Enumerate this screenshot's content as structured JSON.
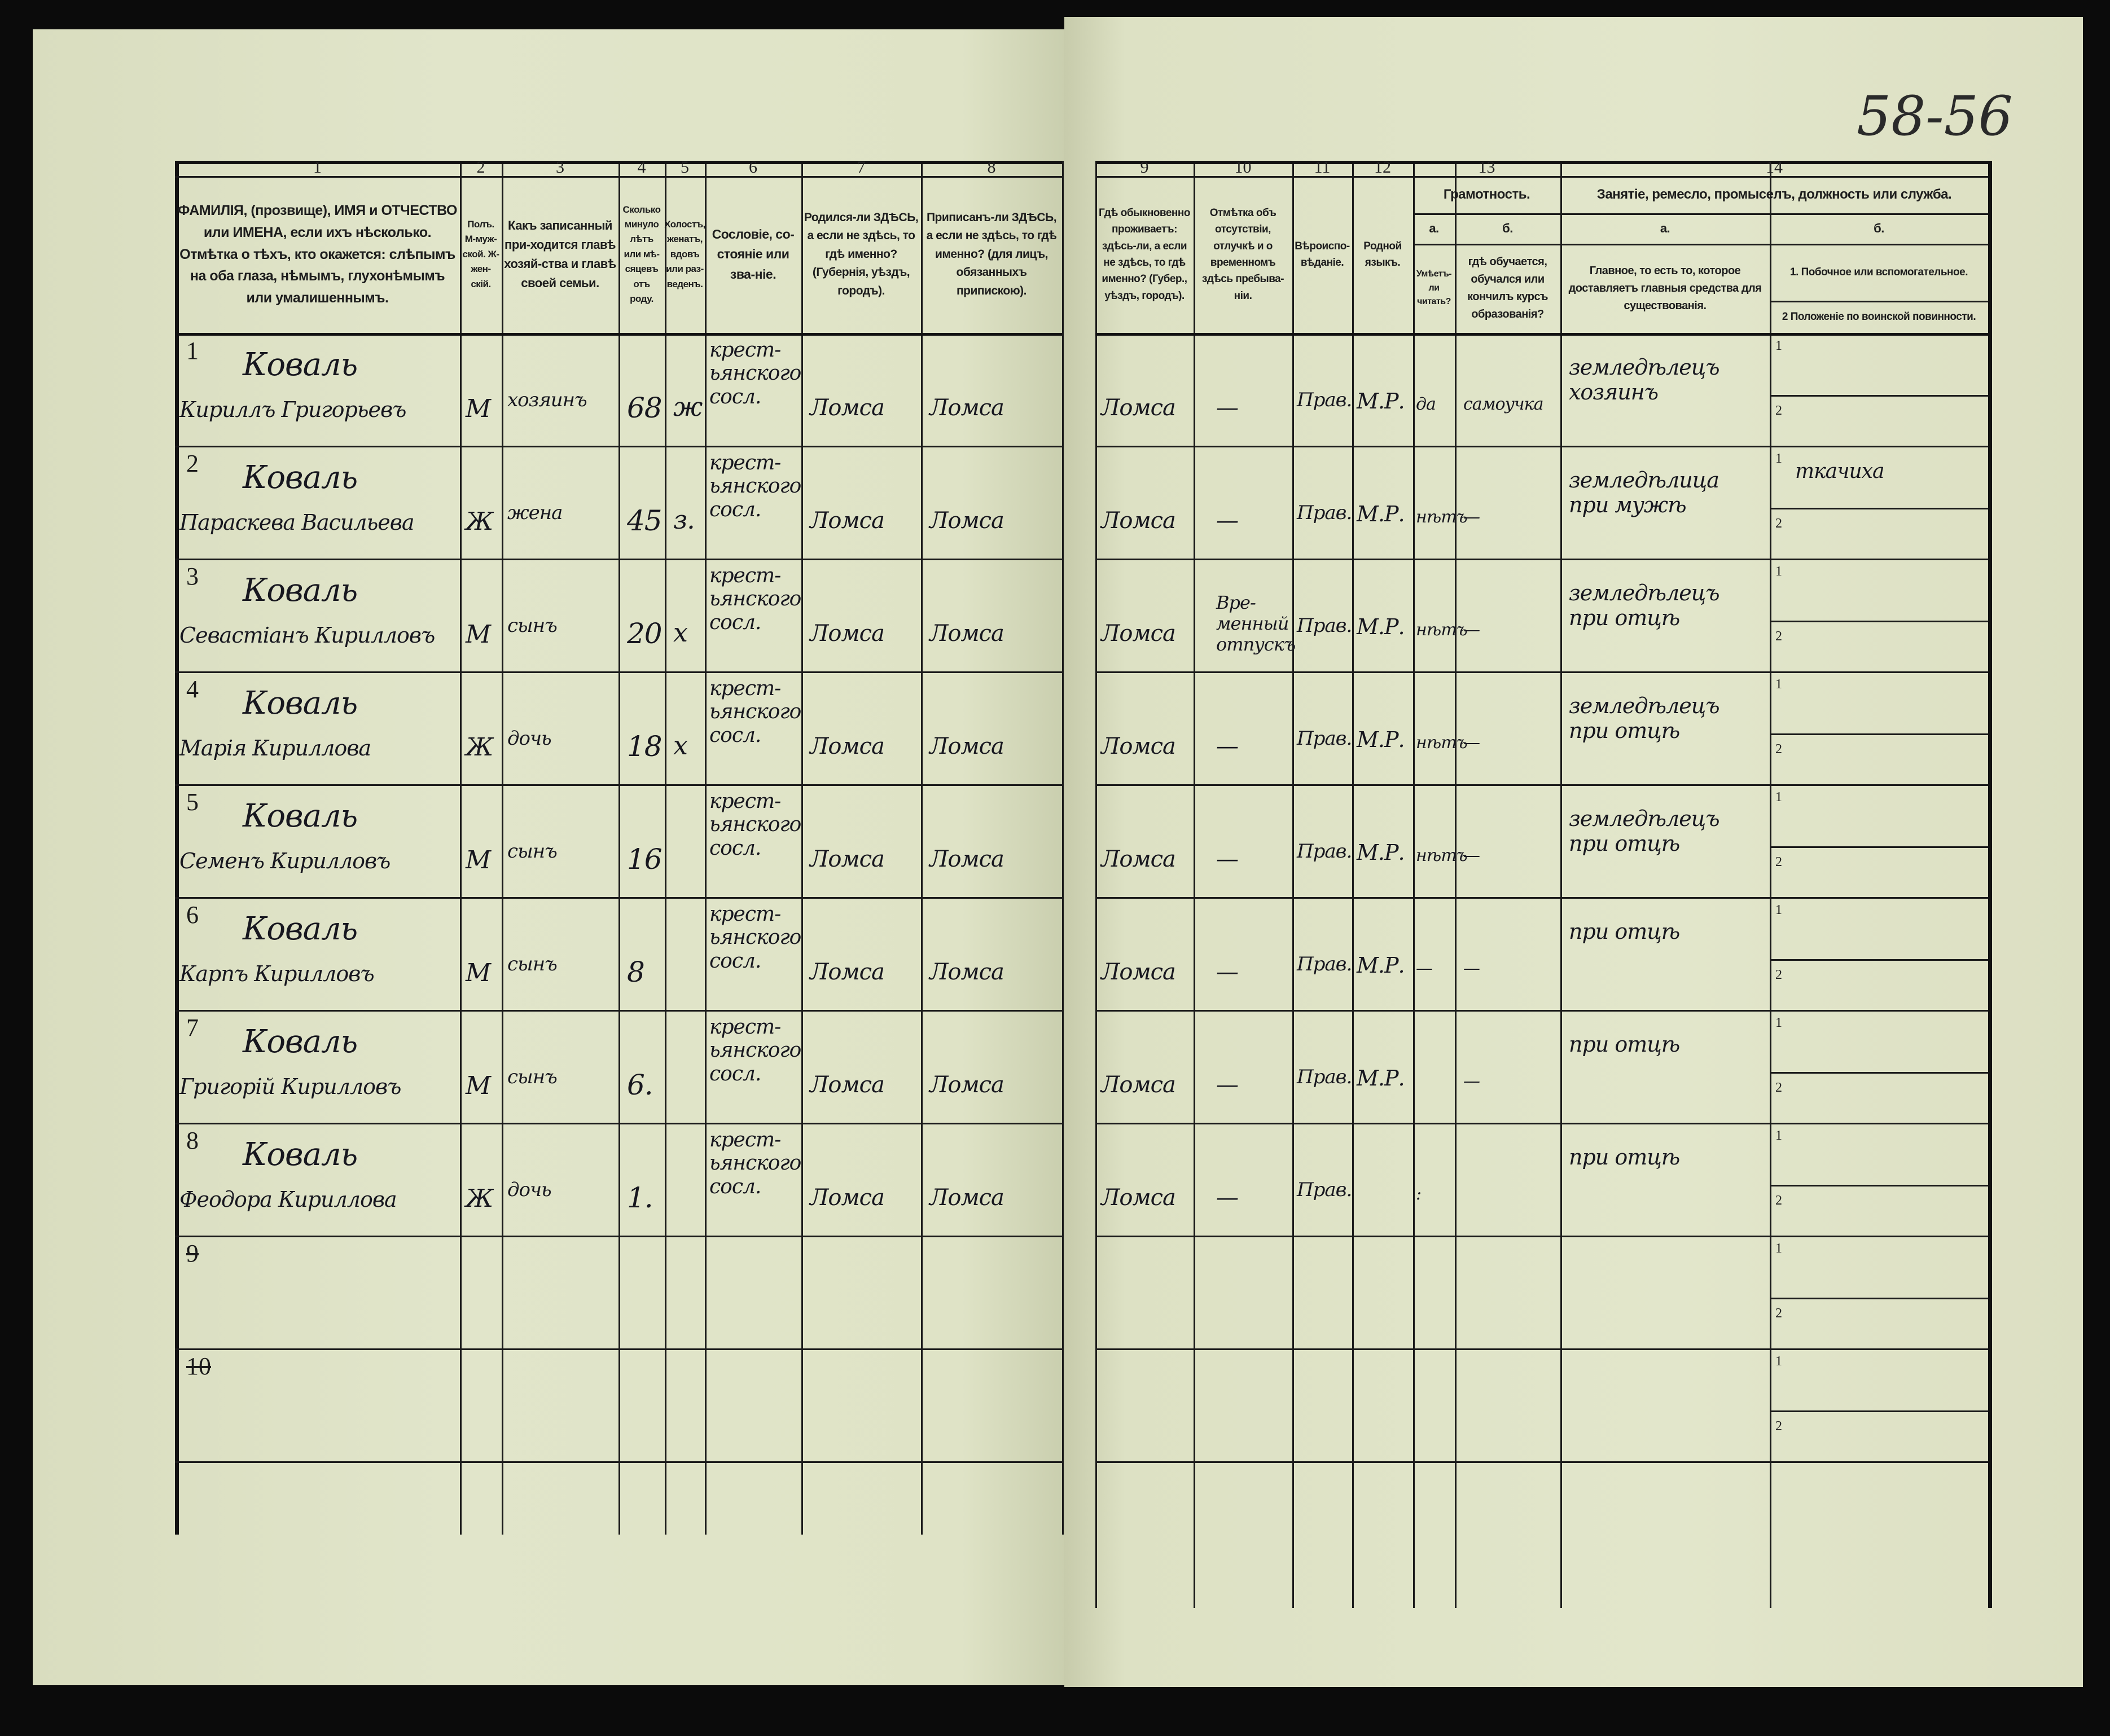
{
  "sheet_number": "58-56",
  "header": {
    "column_numbers": [
      "1",
      "2",
      "3",
      "4",
      "5",
      "6",
      "7",
      "8",
      "9",
      "10",
      "11",
      "12",
      "13",
      "14"
    ],
    "col1": "ФАМИЛІЯ, (прозвище), ИМЯ и ОТЧЕСТВО или ИМЕНА, если ихъ нѣсколько. Отмѣтка о тѣхъ, кто окажется: слѣпымъ на оба глаза, нѣмымъ, глухонѣмымъ или умалишеннымъ.",
    "col2": "Полъ. М-муж-ской. Ж-жен-скій.",
    "col3": "Какъ записанный при-ходится главѣ хозяй-ства и главѣ своей семьи.",
    "col4": "Сколько минуло лѣтъ или мѣ-сяцевъ отъ роду.",
    "col5": "Холостъ, женатъ, вдовъ или раз-веденъ.",
    "col6": "Сословіе, со-стояніе или зва-ніе.",
    "col7": "Родился-ли ЗДѢСЬ, а если не здѣсь, то гдѣ именно? (Губернія, уѣздъ, городъ).",
    "col8": "Приписанъ-ли ЗДѢСЬ, а если не здѣсь, то гдѣ именно? (для лицъ, обязанныхъ припискою).",
    "col9": "Гдѣ обыкновенно проживаетъ: здѣсь-ли, а если не здѣсь, то гдѣ именно? (Губер., уѣздъ, городъ).",
    "col10": "Отмѣтка объ отсутствіи, отлучкѣ и о временномъ здѣсь пребыва-ніи.",
    "col11": "Вѣроиспо-вѣданіе.",
    "col12": "Родной языкъ.",
    "col13": "Грамотность.",
    "col13a_letter": "а.",
    "col13a": "Умѣетъ-ли читать?",
    "col13b_letter": "б.",
    "col13b": "гдѣ обучается, обучался или кончилъ курсъ образованія?",
    "col14": "Занятіе, ремесло, промыселъ, должность или служба.",
    "col14a_letter": "а.",
    "col14a": "Главное, то есть то, которое доставляетъ главныя средства для существованія.",
    "col14b_letter": "б.",
    "col14b1": "1. Побочное или вспомогательное.",
    "col14b2": "2 Положеніе по воинской повинности.",
    "sub1": "1",
    "sub2": "2"
  },
  "rows": [
    {
      "n": "1",
      "surname": "Коваль",
      "name": "Кириллъ Григорьевъ",
      "sex": "М",
      "relation": "хозяинъ",
      "age": "68",
      "marital": "ж",
      "estate": "крест-ьянского сосл.",
      "born": "Ломса",
      "registered": "Ломса",
      "lives": "Ломса",
      "absence": "—",
      "religion": "Прав.",
      "language": "М.Р.",
      "reads": "да",
      "education": "самоучка",
      "occupation": "земледѣлецъ хозяинъ",
      "side": "",
      "military": ""
    },
    {
      "n": "2",
      "surname": "Коваль",
      "name": "Параскева Васильева",
      "sex": "Ж",
      "relation": "жена",
      "age": "45",
      "marital": "з.",
      "estate": "крест-ьянского сосл.",
      "born": "Ломса",
      "registered": "Ломса",
      "lives": "Ломса",
      "absence": "—",
      "religion": "Прав.",
      "language": "М.Р.",
      "reads": "нѣтъ",
      "education": "—",
      "occupation": "земледѣлица при мужѣ",
      "side": "ткачиха",
      "military": ""
    },
    {
      "n": "3",
      "surname": "Коваль",
      "name": "Севастіанъ Кирилловъ",
      "sex": "М",
      "relation": "сынъ",
      "age": "20",
      "marital": "х",
      "estate": "крест-ьянского сосл.",
      "born": "Ломса",
      "registered": "Ломса",
      "lives": "Ломса",
      "absence": "Вре-менный отпускъ",
      "religion": "Прав.",
      "language": "М.Р.",
      "reads": "нѣтъ",
      "education": "—",
      "occupation": "земледѣлецъ при отцѣ",
      "side": "",
      "military": ""
    },
    {
      "n": "4",
      "surname": "Коваль",
      "name": "Марія Кириллова",
      "sex": "Ж",
      "relation": "дочь",
      "age": "18",
      "marital": "х",
      "estate": "крест-ьянского сосл.",
      "born": "Ломса",
      "registered": "Ломса",
      "lives": "Ломса",
      "absence": "—",
      "religion": "Прав.",
      "language": "М.Р.",
      "reads": "нѣтъ",
      "education": "—",
      "occupation": "земледѣлецъ при отцѣ",
      "side": "",
      "military": ""
    },
    {
      "n": "5",
      "surname": "Коваль",
      "name": "Семенъ Кирилловъ",
      "sex": "М",
      "relation": "сынъ",
      "age": "16",
      "marital": "",
      "estate": "крест-ьянского сосл.",
      "born": "Ломса",
      "registered": "Ломса",
      "lives": "Ломса",
      "absence": "—",
      "religion": "Прав.",
      "language": "М.Р.",
      "reads": "нѣтъ",
      "education": "—",
      "occupation": "земледѣлецъ при отцѣ",
      "side": "",
      "military": ""
    },
    {
      "n": "6",
      "surname": "Коваль",
      "name": "Карпъ Кирилловъ",
      "sex": "М",
      "relation": "сынъ",
      "age": "8",
      "marital": "",
      "estate": "крест-ьянского сосл.",
      "born": "Ломса",
      "registered": "Ломса",
      "lives": "Ломса",
      "absence": "—",
      "religion": "Прав.",
      "language": "М.Р.",
      "reads": "—",
      "education": "—",
      "occupation": "при отцѣ",
      "side": "",
      "military": ""
    },
    {
      "n": "7",
      "surname": "Коваль",
      "name": "Григорій Кирилловъ",
      "sex": "М",
      "relation": "сынъ",
      "age": "6.",
      "marital": "",
      "estate": "крест-ьянского сосл.",
      "born": "Ломса",
      "registered": "Ломса",
      "lives": "Ломса",
      "absence": "—",
      "religion": "Прав.",
      "language": "М.Р.",
      "reads": "",
      "education": "—",
      "occupation": "при отцѣ",
      "side": "",
      "military": ""
    },
    {
      "n": "8",
      "surname": "Коваль",
      "name": "Феодора Кириллова",
      "sex": "Ж",
      "relation": "дочь",
      "age": "1.",
      "marital": "",
      "estate": "крест-ьянского сосл.",
      "born": "Ломса",
      "registered": "Ломса",
      "lives": "Ломса",
      "absence": "—",
      "religion": "Прав.",
      "language": "",
      "reads": ":",
      "education": "",
      "occupation": "при отцѣ",
      "side": "",
      "military": ""
    },
    {
      "n": "9",
      "surname": "",
      "name": "",
      "sex": "",
      "relation": "",
      "age": "",
      "marital": "",
      "estate": "",
      "born": "",
      "registered": "",
      "lives": "",
      "absence": "",
      "religion": "",
      "language": "",
      "reads": "",
      "education": "",
      "occupation": "",
      "side": "",
      "military": ""
    },
    {
      "n": "10",
      "surname": "",
      "name": "",
      "sex": "",
      "relation": "",
      "age": "",
      "marital": "",
      "estate": "",
      "born": "",
      "registered": "",
      "lives": "",
      "absence": "",
      "religion": "",
      "language": "",
      "reads": "",
      "education": "",
      "occupation": "",
      "side": "",
      "military": ""
    }
  ],
  "colors": {
    "paper": "#dfe3c7",
    "ink": "#17171f",
    "background": "#0b0b0b"
  }
}
